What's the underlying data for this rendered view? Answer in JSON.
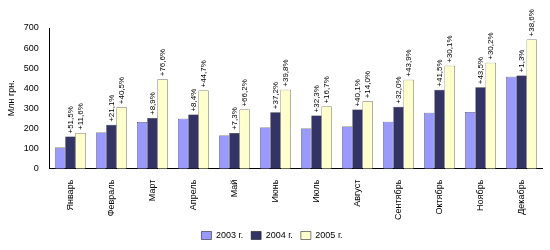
{
  "chart_data": {
    "type": "bar",
    "y_label": "Млн грн.",
    "categories": [
      "Январь",
      "Февраль",
      "Март",
      "Апрель",
      "Май",
      "Июнь",
      "Июль",
      "Август",
      "Сентябрь",
      "Октябрь",
      "Ноябрь",
      "Декабрь"
    ],
    "series": [
      {
        "name": "2003 г.",
        "color": "#9999ff",
        "values": [
          105,
          180,
          232,
          248,
          165,
          205,
          200,
          210,
          233,
          278,
          282,
          458
        ]
      },
      {
        "name": "2004 г.",
        "color": "#333366",
        "values": [
          160,
          218,
          252,
          269,
          177,
          281,
          265,
          294,
          308,
          393,
          405,
          464
        ],
        "annotations": [
          "+51,5%",
          "+21,1%",
          "+8,9%",
          "+8,4%",
          "+7,3%",
          "+37,2%",
          "+32,3%",
          "+40,1%",
          "+32,0%",
          "+41,5%",
          "+43,5%",
          "+1,3%"
        ]
      },
      {
        "name": "2005 г.",
        "color": "#ffffcc",
        "values": [
          178,
          306,
          445,
          389,
          294,
          393,
          309,
          335,
          443,
          512,
          527,
          643
        ],
        "annotations": [
          "+11,6%",
          "+40,5%",
          "+76,6%",
          "+44,7%",
          "+66,2%",
          "+39,8%",
          "+16,7%",
          "+14,0%",
          "+43,9%",
          "+30,1%",
          "+30,2%",
          "+38,6%"
        ]
      }
    ],
    "ylim": [
      0,
      700
    ],
    "yticks": [
      0,
      100,
      200,
      300,
      400,
      500,
      600,
      700
    ],
    "grid": false,
    "legend": "bottom"
  }
}
